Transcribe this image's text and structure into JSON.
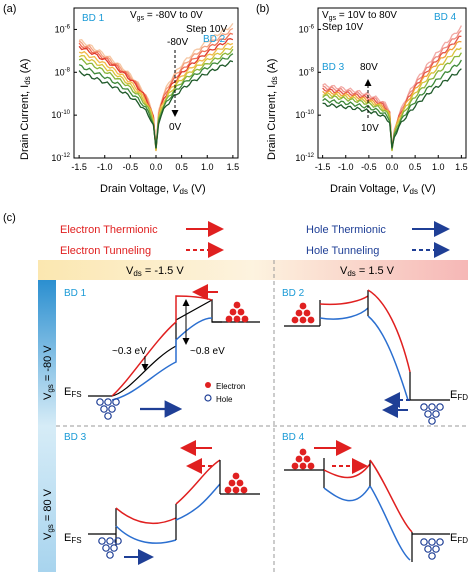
{
  "panel_a": {
    "letter": "(a)",
    "bd1": "BD 1",
    "bd2": "BD 2",
    "sweep_line1_main": "V",
    "sweep_line1_sub": "gs",
    "sweep_line1_rest": " = -80V to 0V",
    "sweep_line2": "Step 10V",
    "arrow_top": "-80V",
    "arrow_bottom": "0V"
  },
  "panel_b": {
    "letter": "(b)",
    "bd3": "BD 3",
    "bd4": "BD 4",
    "sweep_line1_main": "V",
    "sweep_line1_sub": "gs",
    "sweep_line1_rest": " = 10V to 80V",
    "sweep_line2": "Step 10V",
    "arrow_top": "80V",
    "arrow_bottom": "10V"
  },
  "axes": {
    "ylabel_main": "Drain Current, I",
    "ylabel_sub": "ds",
    "ylabel_unit": " (A)",
    "xlabel_main": "Drain Voltage, ",
    "xlabel_italic": "V",
    "xlabel_sub": "ds",
    "xlabel_unit": " (V)",
    "x_ticks": [
      "-1.5",
      "-1.0",
      "-0.5",
      "0.0",
      "0.5",
      "1.0",
      "1.5"
    ],
    "y_tick_base": "10",
    "y_tick_exps": [
      "-6",
      "-8",
      "-10",
      "-12"
    ]
  },
  "chart_data": [
    {
      "type": "line",
      "panel": "a",
      "x_range": [
        -1.6,
        1.6
      ],
      "y_log_range": [
        -12,
        -5
      ],
      "series": [
        {
          "color": "#f6c7a3",
          "left": -6.5,
          "right": -5.8
        },
        {
          "color": "#f4a07e",
          "left": -6.6,
          "right": -6.0
        },
        {
          "color": "#ef6f55",
          "left": -6.7,
          "right": -6.2
        },
        {
          "color": "#e03a2c",
          "left": -6.8,
          "right": -6.4
        },
        {
          "color": "#f2b94a",
          "left": -7.0,
          "right": -6.6
        },
        {
          "color": "#d8c33a",
          "left": -7.2,
          "right": -6.8
        },
        {
          "color": "#8ab63a",
          "left": -7.4,
          "right": -7.0
        },
        {
          "color": "#3f8a3a",
          "left": -7.7,
          "right": -7.2
        },
        {
          "color": "#1f5a2a",
          "left": -8.0,
          "right": -7.5
        }
      ]
    },
    {
      "type": "line",
      "panel": "b",
      "x_range": [
        -1.6,
        1.6
      ],
      "y_log_range": [
        -12,
        -5
      ],
      "series": [
        {
          "color": "#f2aaa6",
          "left": -8.6,
          "right": -5.9
        },
        {
          "color": "#ee8a80",
          "left": -8.7,
          "right": -6.1
        },
        {
          "color": "#e5574a",
          "left": -8.8,
          "right": -6.3
        },
        {
          "color": "#f2a03a",
          "left": -8.9,
          "right": -6.5
        },
        {
          "color": "#d8c33a",
          "left": -9.0,
          "right": -6.8
        },
        {
          "color": "#8ab63a",
          "left": -9.1,
          "right": -7.1
        },
        {
          "color": "#3f8a3a",
          "left": -9.3,
          "right": -7.5
        },
        {
          "color": "#1f5a2a",
          "left": -9.5,
          "right": -7.9
        }
      ]
    }
  ],
  "panel_c": {
    "letter": "(c)",
    "legend": {
      "electron_thermionic": "Electron Thermionic",
      "electron_tunneling": "Electron Tunneling",
      "hole_thermionic": "Hole Thermionic",
      "hole_tunneling": "Hole Tunneling",
      "electron": "Electron",
      "hole": "Hole"
    },
    "col_left_main": "V",
    "col_left_sub": "ds",
    "col_left_rest": " = -1.5 V",
    "col_right_main": "V",
    "col_right_sub": "ds",
    "col_right_rest": " = 1.5 V",
    "row_top_main": "V",
    "row_top_sub": "gs",
    "row_top_rest": " = -80 V",
    "row_bot_main": "V",
    "row_bot_sub": "gs",
    "row_bot_rest": " = 80 V",
    "bd1": "BD 1",
    "bd2": "BD 2",
    "bd3": "BD 3",
    "bd4": "BD 4",
    "barrier_small": "~0.3 eV",
    "barrier_large": "~0.8 eV",
    "efs_main": "E",
    "efs_sub": "FS",
    "efd_main": "E",
    "efd_sub": "FD",
    "colors": {
      "electron": "#e02020",
      "hole": "#1f3f96",
      "bd_label": "#1a9ad6"
    }
  }
}
